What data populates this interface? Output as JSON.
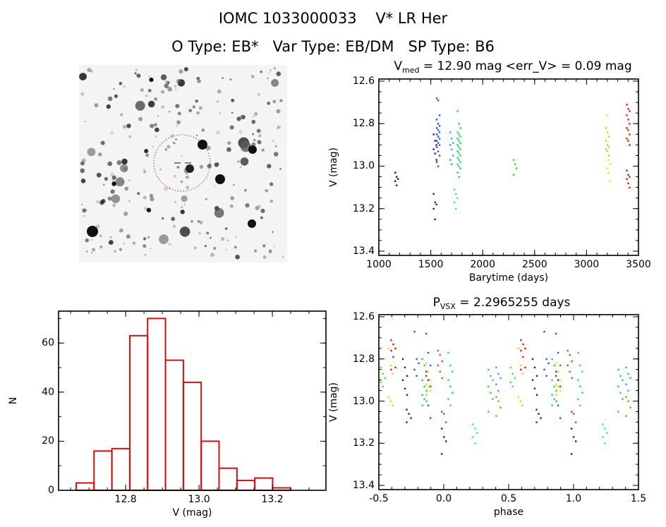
{
  "header": {
    "title": "IOMC 1033000033    V* LR Her",
    "subtitle": "O Type: EB*   Var Type: EB/DM   SP Type: B6"
  },
  "chart_data": [
    {
      "type": "image",
      "name": "finder-chart"
    },
    {
      "type": "scatter",
      "title_main": "V",
      "title_sub": "med",
      "title_rest": " = 12.90 mag <err_V> = 0.09 mag",
      "xlabel": "Barytime (days)",
      "ylabel": "V (mag)",
      "xlim": [
        1000,
        3500
      ],
      "ylim": [
        13.42,
        12.59
      ],
      "xticks": [
        "1000",
        "1500",
        "2000",
        "2500",
        "3000",
        "3500"
      ],
      "yticks": [
        "12.6",
        "12.8",
        "13.0",
        "13.2",
        "13.4"
      ],
      "clusters": [
        {
          "t": 1170,
          "color": "#400080",
          "mags": [
            13.03,
            13.05,
            13.06,
            13.07,
            13.09
          ]
        },
        {
          "t": 1540,
          "color": "#3a1090",
          "mags": [
            12.85,
            12.88,
            12.9,
            12.92,
            12.94,
            12.97,
            13.13,
            13.17,
            13.18,
            13.2,
            13.25
          ]
        },
        {
          "t": 1570,
          "color": "#1e5ad0",
          "mags": [
            12.68,
            12.69,
            12.76,
            12.78,
            12.8,
            12.81,
            12.82,
            12.83,
            12.84,
            12.85,
            12.86,
            12.87,
            12.88,
            12.89,
            12.9,
            12.91,
            12.93,
            12.95,
            12.98,
            13.0
          ]
        },
        {
          "t": 1700,
          "color": "#30a8e0",
          "mags": [
            12.84,
            12.87,
            12.89,
            12.9,
            12.92,
            12.95,
            12.97,
            12.99
          ]
        },
        {
          "t": 1740,
          "color": "#30e0e0",
          "mags": [
            13.11,
            13.13,
            13.15,
            13.17,
            13.2
          ]
        },
        {
          "t": 1770,
          "color": "#10e060",
          "mags": [
            12.74,
            12.8,
            12.82,
            12.84,
            12.85,
            12.86,
            12.87,
            12.88,
            12.89,
            12.9,
            12.91,
            12.92,
            12.93,
            12.94,
            12.95,
            12.96,
            12.97,
            12.98,
            12.99,
            13.0,
            13.01,
            13.03,
            13.05
          ]
        },
        {
          "t": 2310,
          "color": "#40d040",
          "mags": [
            12.97,
            12.99,
            13.01,
            13.04
          ]
        },
        {
          "t": 3200,
          "color": "#a0e020",
          "mags": [
            12.82,
            12.84,
            12.86,
            12.88,
            12.9,
            12.91,
            12.92,
            12.93,
            12.95
          ]
        },
        {
          "t": 3210,
          "color": "#f0e000",
          "mags": [
            12.76,
            12.97,
            12.99,
            13.01,
            13.03,
            13.07
          ]
        },
        {
          "t": 3400,
          "color": "#d02010",
          "mags": [
            12.71,
            12.73,
            12.74,
            12.76,
            12.78,
            12.8,
            12.82,
            12.83,
            12.85,
            12.87,
            12.88,
            12.9,
            13.02,
            13.04,
            13.05,
            13.06,
            13.08,
            13.1
          ]
        }
      ]
    },
    {
      "type": "histogram",
      "xlabel": "V (mag)",
      "ylabel": "N",
      "xlim": [
        12.617,
        13.346
      ],
      "ylim": [
        0,
        73
      ],
      "xticks": [
        "12.8",
        "13.0",
        "13.2"
      ],
      "yticks": [
        "0",
        "20",
        "40",
        "60"
      ],
      "bin_start": 12.665,
      "bin_width": 0.0487,
      "counts": [
        3,
        16,
        17,
        63,
        70,
        53,
        44,
        20,
        9,
        4,
        5,
        1
      ],
      "color": "#cc1111"
    },
    {
      "type": "scatter",
      "title_main": "P",
      "title_sub": "VSX",
      "title_rest": " = 2.2965255 days",
      "xlabel": "phase",
      "ylabel": "V (mag)",
      "xlim": [
        -0.5,
        1.5
      ],
      "ylim": [
        13.42,
        12.59
      ],
      "xticks": [
        "-0.5",
        "0.0",
        "0.5",
        "1.0",
        "1.5"
      ],
      "yticks": [
        "12.6",
        "12.8",
        "13.0",
        "13.2",
        "13.4"
      ],
      "clusters": [
        {
          "phase": -0.39,
          "color": "#d02010",
          "mags": [
            12.71,
            12.73,
            12.75,
            12.76,
            12.79,
            12.84,
            12.85
          ]
        },
        {
          "phase": -0.03,
          "color": "#d05020",
          "mags": [
            12.76,
            12.78,
            12.81,
            12.83,
            12.86,
            12.89
          ]
        },
        {
          "phase": 0.0,
          "color": "#d04020",
          "mags": [
            13.05,
            13.06,
            13.1
          ]
        },
        {
          "phase": -0.12,
          "color": "#c03010",
          "mags": [
            12.88,
            12.9,
            12.93,
            12.97,
            13.02,
            13.08
          ]
        },
        {
          "phase": -0.41,
          "color": "#f0d000",
          "mags": [
            12.75,
            12.83,
            12.87,
            12.98,
            13.0,
            13.02
          ]
        },
        {
          "phase": -0.12,
          "color": "#f0e000",
          "mags": [
            12.82,
            12.86,
            12.9,
            12.92,
            12.93,
            12.95,
            12.97
          ]
        },
        {
          "phase": -0.47,
          "color": "#50e040",
          "mags": [
            12.84,
            12.87,
            12.89,
            12.91,
            12.93
          ]
        },
        {
          "phase": -0.15,
          "color": "#10e060",
          "mags": [
            12.8,
            12.83,
            12.86,
            12.9,
            12.93,
            12.95,
            12.97,
            12.99,
            13.0,
            13.02
          ]
        },
        {
          "phase": 0.05,
          "color": "#30e050",
          "mags": [
            12.77,
            12.83,
            12.86,
            12.9,
            12.93,
            12.96,
            12.99,
            13.02
          ]
        },
        {
          "phase": 0.36,
          "color": "#40d040",
          "mags": [
            12.85,
            12.88,
            12.9,
            12.93,
            12.96,
            12.99,
            13.05
          ]
        },
        {
          "phase": -0.21,
          "color": "#1e5ad0",
          "mags": [
            12.67,
            12.8,
            12.82,
            12.85,
            12.88
          ]
        },
        {
          "phase": -0.12,
          "color": "#1e5ad0",
          "mags": [
            12.68,
            12.77,
            12.83,
            12.86,
            12.9
          ]
        },
        {
          "phase": -0.3,
          "color": "#3a1090",
          "mags": [
            12.8,
            12.84,
            12.88,
            12.9,
            12.94,
            12.97
          ]
        },
        {
          "phase": -0.27,
          "color": "#3a1090",
          "mags": [
            13.04,
            13.06,
            13.08,
            13.1
          ]
        },
        {
          "phase": 0.0,
          "color": "#3a1090",
          "mags": [
            13.13,
            13.17,
            13.19,
            13.25
          ]
        },
        {
          "phase": 0.24,
          "color": "#30e0e0",
          "mags": [
            13.11,
            13.13,
            13.15,
            13.17,
            13.2
          ]
        },
        {
          "phase": 0.42,
          "color": "#30a8e0",
          "mags": [
            12.84,
            12.87,
            12.89,
            12.92,
            12.95
          ]
        },
        {
          "phase": 0.42,
          "color": "#e08020",
          "mags": [
            12.98,
            13.0,
            13.03,
            13.07
          ]
        }
      ]
    }
  ]
}
